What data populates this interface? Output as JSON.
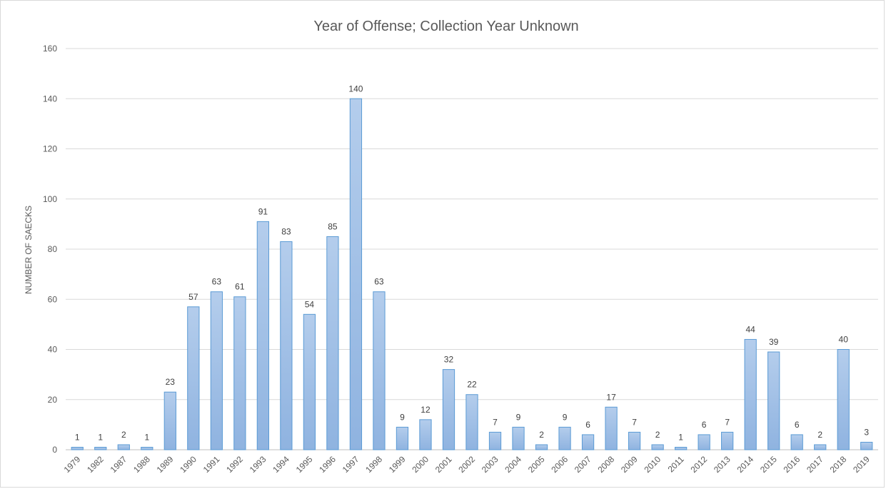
{
  "chart_data": {
    "type": "bar",
    "title": "Year of Offense; Collection Year Unknown",
    "xlabel": "",
    "ylabel": "NUMBER OF SAECKS",
    "ylim": [
      0,
      160
    ],
    "yticks": [
      0,
      20,
      40,
      60,
      80,
      100,
      120,
      140,
      160
    ],
    "grid": true,
    "legend": "none",
    "categories": [
      "1979",
      "1982",
      "1987",
      "1988",
      "1989",
      "1990",
      "1991",
      "1992",
      "1993",
      "1994",
      "1995",
      "1996",
      "1997",
      "1998",
      "1999",
      "2000",
      "2001",
      "2002",
      "2003",
      "2004",
      "2005",
      "2006",
      "2007",
      "2008",
      "2009",
      "2010",
      "2011",
      "2012",
      "2013",
      "2014",
      "2015",
      "2016",
      "2017",
      "2018",
      "2019"
    ],
    "values": [
      1,
      1,
      2,
      1,
      23,
      57,
      63,
      61,
      91,
      83,
      54,
      85,
      140,
      63,
      9,
      12,
      32,
      22,
      7,
      9,
      2,
      9,
      6,
      17,
      7,
      2,
      1,
      6,
      7,
      44,
      39,
      6,
      2,
      40,
      3
    ],
    "bar_color_top": "#b4cdec",
    "bar_color_bottom": "#8fb3e0",
    "bar_border": "#5b9bd5"
  }
}
